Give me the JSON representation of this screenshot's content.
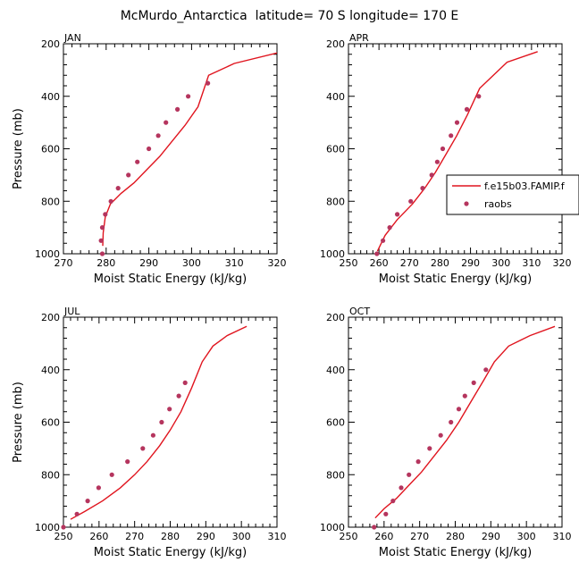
{
  "title": "McMurdo_Antarctica  latitude= 70 S longitude= 170 E",
  "legend": {
    "model": "f.e15b03.FAMIP.f",
    "obs": "raobs",
    "colors": {
      "model": "#e0141e",
      "obs": "#b5355e"
    }
  },
  "chart_data": [
    {
      "type": "line",
      "panel": "JAN",
      "xlabel": "Moist Static Energy (kJ/kg)",
      "ylabel": "Pressure (mb)",
      "xlim": [
        270,
        320
      ],
      "ylim": [
        200,
        1000
      ],
      "x_ticks": [
        270,
        280,
        290,
        300,
        310,
        320
      ],
      "y_ticks": [
        200,
        400,
        600,
        800,
        1000
      ],
      "series": [
        {
          "name": "f.e15b03.FAMIP.f",
          "kind": "line",
          "x": [
            279.2,
            279.3,
            279.8,
            281,
            283.5,
            286.5,
            289.5,
            292.5,
            295.5,
            298.5,
            301.5,
            304,
            310,
            320
          ],
          "y": [
            970,
            920,
            860,
            810,
            770,
            730,
            680,
            630,
            570,
            510,
            440,
            320,
            275,
            235
          ]
        },
        {
          "name": "raobs",
          "kind": "scatter",
          "x": [
            279.1,
            278.8,
            279.1,
            279.8,
            281.1,
            282.8,
            285.2,
            287.3,
            290,
            292.2,
            294,
            296.7,
            299.2,
            303.8
          ],
          "y": [
            1000,
            950,
            900,
            850,
            800,
            750,
            700,
            650,
            600,
            550,
            500,
            450,
            400,
            350
          ]
        }
      ]
    },
    {
      "type": "line",
      "panel": "APR",
      "xlabel": "Moist Static Energy (kJ/kg)",
      "ylabel": "",
      "xlim": [
        250,
        320
      ],
      "ylim": [
        200,
        1000
      ],
      "x_ticks": [
        250,
        260,
        270,
        280,
        290,
        300,
        310,
        320
      ],
      "y_ticks": [
        200,
        400,
        600,
        800,
        1000
      ],
      "series": [
        {
          "name": "f.e15b03.FAMIP.f",
          "kind": "line",
          "x": [
            259.5,
            262,
            266,
            271,
            275,
            278.5,
            282,
            285.5,
            289,
            293,
            302,
            312
          ],
          "y": [
            990,
            930,
            870,
            810,
            750,
            690,
            620,
            550,
            470,
            370,
            270,
            230
          ]
        },
        {
          "name": "raobs",
          "kind": "scatter",
          "x": [
            259.3,
            261.3,
            263.5,
            266,
            270.4,
            274.3,
            277.3,
            279.1,
            280.9,
            283.6,
            285.6,
            288.8,
            292.7
          ],
          "y": [
            1000,
            950,
            900,
            850,
            800,
            750,
            700,
            650,
            600,
            550,
            500,
            450,
            400
          ]
        }
      ]
    },
    {
      "type": "line",
      "panel": "JUL",
      "xlabel": "Moist Static Energy (kJ/kg)",
      "ylabel": "Pressure (mb)",
      "xlim": [
        250,
        310
      ],
      "ylim": [
        200,
        1000
      ],
      "x_ticks": [
        250,
        260,
        270,
        280,
        290,
        300,
        310
      ],
      "y_ticks": [
        200,
        400,
        600,
        800,
        1000
      ],
      "series": [
        {
          "name": "f.e15b03.FAMIP.f",
          "kind": "line",
          "x": [
            252,
            256,
            261,
            266,
            270,
            273.5,
            277,
            280,
            283,
            286,
            289,
            292,
            296,
            301.5
          ],
          "y": [
            970,
            940,
            900,
            850,
            800,
            750,
            690,
            630,
            560,
            470,
            370,
            310,
            270,
            235
          ]
        },
        {
          "name": "raobs",
          "kind": "scatter",
          "x": [
            250,
            253.8,
            256.8,
            259.9,
            263.6,
            268,
            272.3,
            275.2,
            277.6,
            279.8,
            282.4,
            284.2
          ],
          "y": [
            1000,
            950,
            900,
            850,
            800,
            750,
            700,
            650,
            600,
            550,
            500,
            450
          ]
        }
      ]
    },
    {
      "type": "line",
      "panel": "OCT",
      "xlabel": "Moist Static Energy (kJ/kg)",
      "ylabel": "",
      "xlim": [
        250,
        310
      ],
      "ylim": [
        200,
        1000
      ],
      "x_ticks": [
        250,
        260,
        270,
        280,
        290,
        300,
        310
      ],
      "y_ticks": [
        200,
        400,
        600,
        800,
        1000
      ],
      "series": [
        {
          "name": "f.e15b03.FAMIP.f",
          "kind": "line",
          "x": [
            257.5,
            260,
            263.5,
            267,
            270.5,
            274,
            277.5,
            281,
            284.5,
            288,
            291,
            295,
            301,
            308
          ],
          "y": [
            965,
            930,
            890,
            840,
            790,
            730,
            670,
            600,
            520,
            440,
            370,
            310,
            270,
            235
          ]
        },
        {
          "name": "raobs",
          "kind": "scatter",
          "x": [
            257.2,
            260.5,
            262.5,
            264.8,
            267,
            269.6,
            272.8,
            275.9,
            278.8,
            281,
            282.7,
            285.2,
            288.6
          ],
          "y": [
            1000,
            950,
            900,
            850,
            800,
            750,
            700,
            650,
            600,
            550,
            500,
            450,
            400
          ]
        }
      ]
    }
  ]
}
